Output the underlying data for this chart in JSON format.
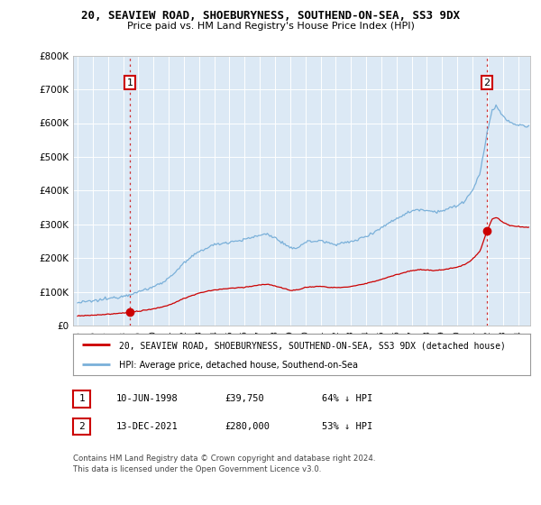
{
  "title": "20, SEAVIEW ROAD, SHOEBURYNESS, SOUTHEND-ON-SEA, SS3 9DX",
  "subtitle": "Price paid vs. HM Land Registry's House Price Index (HPI)",
  "ylim": [
    0,
    800000
  ],
  "yticks": [
    0,
    100000,
    200000,
    300000,
    400000,
    500000,
    600000,
    700000,
    800000
  ],
  "ytick_labels": [
    "£0",
    "£100K",
    "£200K",
    "£300K",
    "£400K",
    "£500K",
    "£600K",
    "£700K",
    "£800K"
  ],
  "hpi_color": "#7ab0d9",
  "price_color": "#cc0000",
  "chart_bg": "#dce9f5",
  "marker_color": "#cc0000",
  "sale1_year": 1998.44,
  "sale1_price": 39750,
  "sale1_label": "1",
  "sale2_year": 2021.95,
  "sale2_price": 280000,
  "sale2_label": "2",
  "legend_line1": "20, SEAVIEW ROAD, SHOEBURYNESS, SOUTHEND-ON-SEA, SS3 9DX (detached house)",
  "legend_line2": "HPI: Average price, detached house, Southend-on-Sea",
  "table_row1": [
    "1",
    "10-JUN-1998",
    "£39,750",
    "64% ↓ HPI"
  ],
  "table_row2": [
    "2",
    "13-DEC-2021",
    "£280,000",
    "53% ↓ HPI"
  ],
  "footnote": "Contains HM Land Registry data © Crown copyright and database right 2024.\nThis data is licensed under the Open Government Licence v3.0.",
  "bg_color": "#ffffff",
  "grid_color": "#ffffff",
  "xlim_left": 1994.7,
  "xlim_right": 2024.8
}
